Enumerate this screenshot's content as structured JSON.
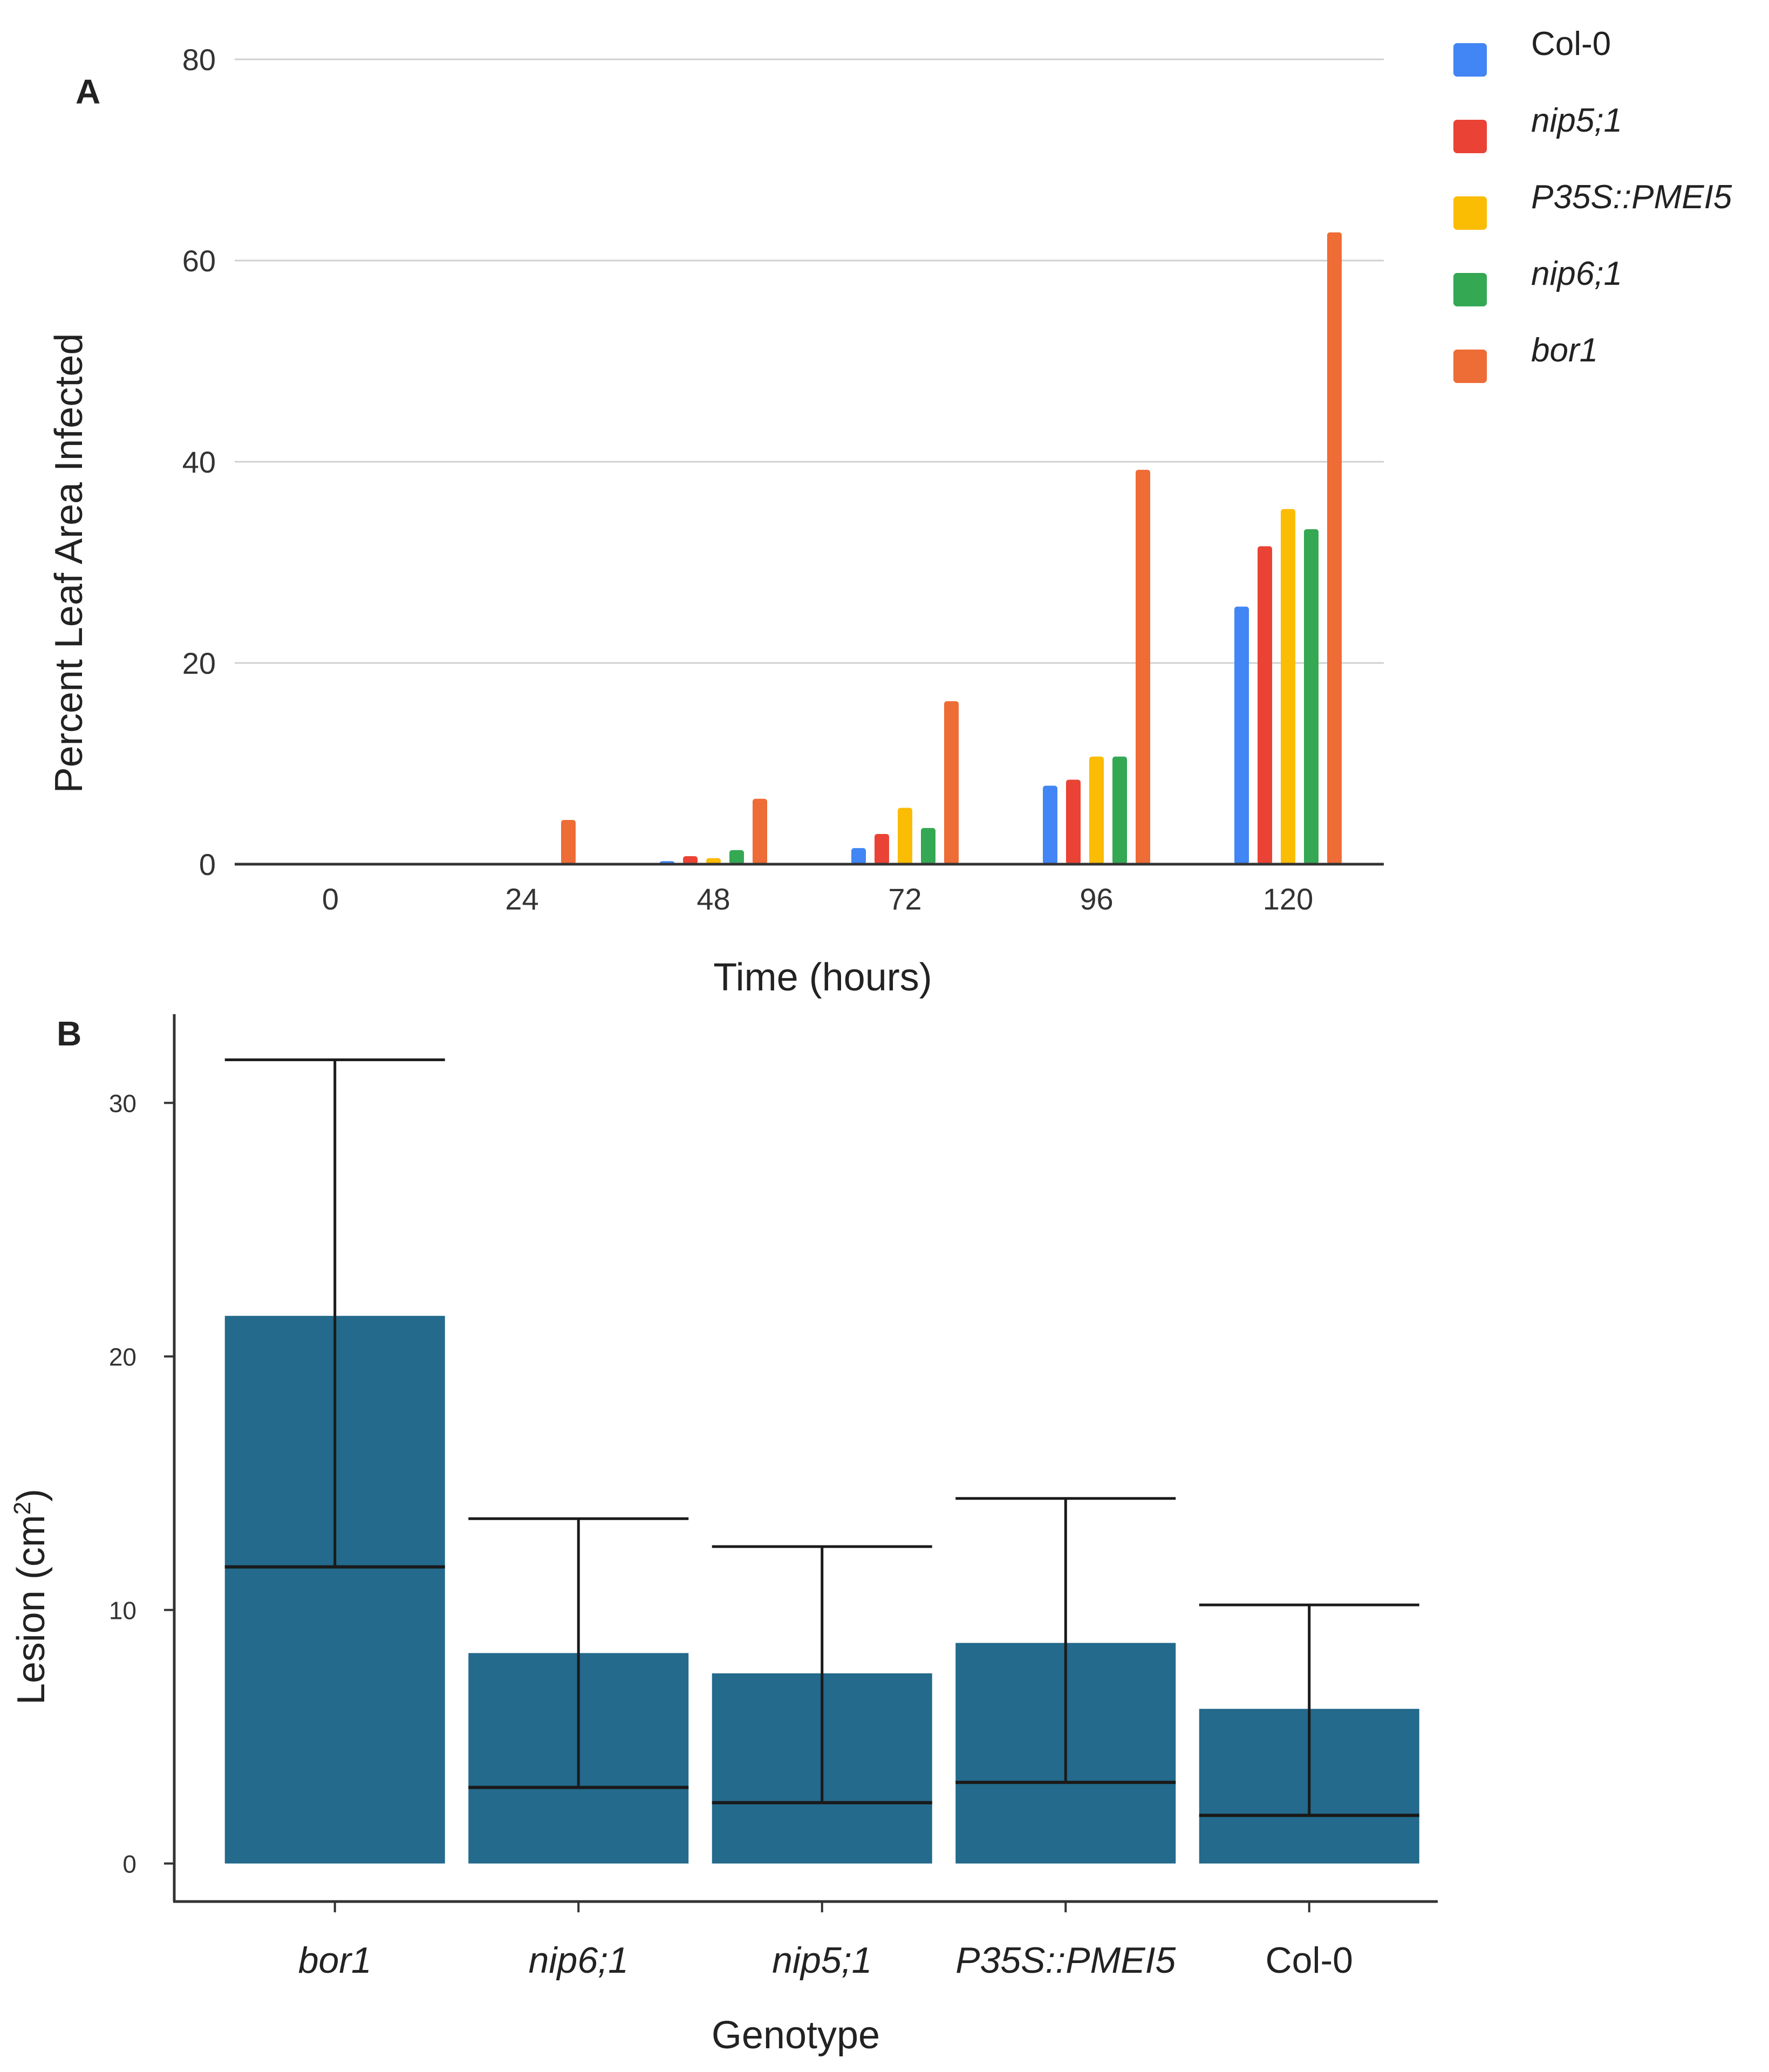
{
  "chart_data": [
    {
      "type": "bar",
      "panel": "A",
      "xlabel": "Time (hours)",
      "ylabel": "Percent Leaf Area Infected",
      "ylim": [
        0,
        80
      ],
      "y_ticks": [
        "0",
        "20",
        "40",
        "60",
        "80"
      ],
      "grid": true,
      "legend_position": "top-right",
      "categories": [
        "0",
        "24",
        "48",
        "72",
        "96",
        "120"
      ],
      "series": [
        {
          "name": "Col-0",
          "color": "#4285f4",
          "italic": false,
          "values": [
            0,
            0,
            0.3,
            1.6,
            7.8,
            25.6
          ]
        },
        {
          "name": "nip5;1",
          "color": "#ea4335",
          "italic": true,
          "values": [
            0,
            0,
            0.8,
            3.0,
            8.4,
            31.6
          ]
        },
        {
          "name": "P35S::PMEI5",
          "color": "#fbbc04",
          "italic": true,
          "values": [
            0,
            0,
            0.6,
            5.6,
            10.7,
            35.3
          ]
        },
        {
          "name": "nip6;1",
          "color": "#34a853",
          "italic": true,
          "values": [
            0,
            0,
            1.4,
            3.6,
            10.7,
            33.3
          ]
        },
        {
          "name": "bor1",
          "color": "#ee6c35",
          "italic": true,
          "values": [
            0,
            4.4,
            6.5,
            16.2,
            39.2,
            62.8
          ]
        }
      ]
    },
    {
      "type": "bar",
      "panel": "B",
      "xlabel": "Genotype",
      "ylabel": "Lesion (cm",
      "ylabel_superscript": "2",
      "ylabel_suffix": ")",
      "ylim": [
        -1.5,
        33.5
      ],
      "y_ticks": [
        "0",
        "10",
        "20",
        "30"
      ],
      "grid": false,
      "bar_color": "#236a8c",
      "categories": [
        {
          "label": "bor1",
          "italic": true
        },
        {
          "label": "nip6;1",
          "italic": true
        },
        {
          "label": "nip5;1",
          "italic": true
        },
        {
          "label": "P35S::PMEI5",
          "italic": true
        },
        {
          "label": "Col-0",
          "italic": false
        }
      ],
      "values": [
        21.6,
        8.3,
        7.5,
        8.7,
        6.1
      ],
      "error_lower": [
        11.7,
        3.0,
        2.4,
        3.2,
        1.9
      ],
      "error_upper": [
        31.7,
        13.6,
        12.5,
        14.4,
        10.2
      ]
    }
  ]
}
